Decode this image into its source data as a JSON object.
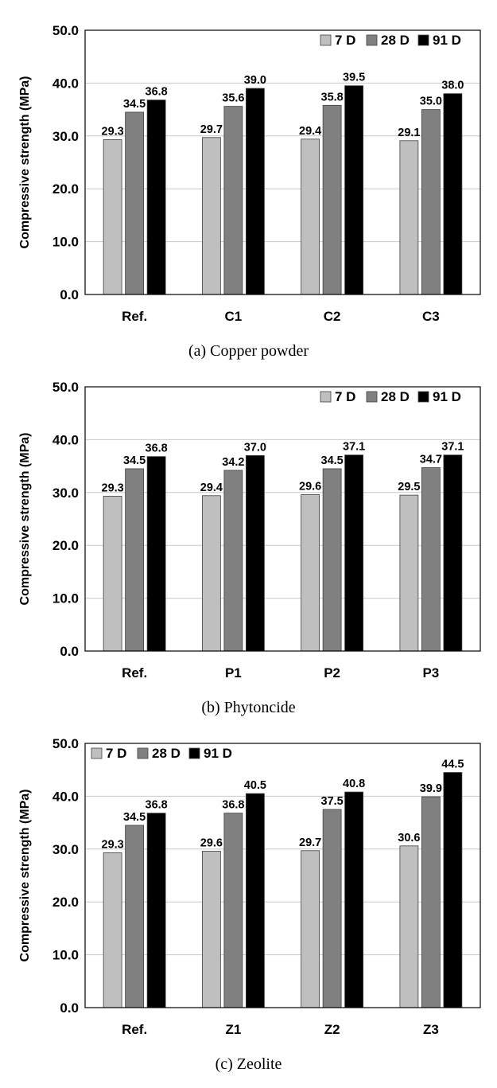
{
  "chart_data": [
    {
      "type": "bar",
      "caption": "(a) Copper powder",
      "ylabel": "Compressive strength (MPa)",
      "ylim": [
        0,
        50
      ],
      "yticks": [
        "0.0",
        "10.0",
        "20.0",
        "30.0",
        "40.0",
        "50.0"
      ],
      "grid": true,
      "legend_position": "top-right",
      "categories": [
        "Ref.",
        "C1",
        "C2",
        "C3"
      ],
      "series": [
        {
          "name": "7 D",
          "color": "#bfbfbf",
          "values": [
            29.3,
            29.7,
            29.4,
            29.1
          ],
          "labels": [
            "29.3",
            "29.7",
            "29.4",
            "29.1"
          ]
        },
        {
          "name": "28 D",
          "color": "#808080",
          "values": [
            34.5,
            35.6,
            35.8,
            35.0
          ],
          "labels": [
            "34.5",
            "35.6",
            "35.8",
            "35.0"
          ]
        },
        {
          "name": "91 D",
          "color": "#000000",
          "values": [
            36.8,
            39.0,
            39.5,
            38.0
          ],
          "labels": [
            "36.8",
            "39.0",
            "39.5",
            "38.0"
          ]
        }
      ]
    },
    {
      "type": "bar",
      "caption": "(b) Phytoncide",
      "ylabel": "Compressive strength (MPa)",
      "ylim": [
        0,
        50
      ],
      "yticks": [
        "0.0",
        "10.0",
        "20.0",
        "30.0",
        "40.0",
        "50.0"
      ],
      "grid": true,
      "legend_position": "top-right",
      "categories": [
        "Ref.",
        "P1",
        "P2",
        "P3"
      ],
      "series": [
        {
          "name": "7 D",
          "color": "#bfbfbf",
          "values": [
            29.3,
            29.4,
            29.6,
            29.5
          ],
          "labels": [
            "29.3",
            "29.4",
            "29.6",
            "29.5"
          ]
        },
        {
          "name": "28 D",
          "color": "#808080",
          "values": [
            34.5,
            34.2,
            34.5,
            34.7
          ],
          "labels": [
            "34.5",
            "34.2",
            "34.5",
            "34.7"
          ]
        },
        {
          "name": "91 D",
          "color": "#000000",
          "values": [
            36.8,
            37.0,
            37.1,
            37.1
          ],
          "labels": [
            "36.8",
            "37.0",
            "37.1",
            "37.1"
          ]
        }
      ]
    },
    {
      "type": "bar",
      "caption": "(c) Zeolite",
      "ylabel": "Compressive strength (MPa)",
      "ylim": [
        0,
        50
      ],
      "yticks": [
        "0.0",
        "10.0",
        "20.0",
        "30.0",
        "40.0",
        "50.0"
      ],
      "grid": true,
      "legend_position": "top-left",
      "categories": [
        "Ref.",
        "Z1",
        "Z2",
        "Z3"
      ],
      "series": [
        {
          "name": "7 D",
          "color": "#bfbfbf",
          "values": [
            29.3,
            29.6,
            29.7,
            30.6
          ],
          "labels": [
            "29.3",
            "29.6",
            "29.7",
            "30.6"
          ]
        },
        {
          "name": "28 D",
          "color": "#808080",
          "values": [
            34.5,
            36.8,
            37.5,
            39.9
          ],
          "labels": [
            "34.5",
            "36.8",
            "37.5",
            "39.9"
          ]
        },
        {
          "name": "91 D",
          "color": "#000000",
          "values": [
            36.8,
            40.5,
            40.8,
            44.5
          ],
          "labels": [
            "36.8",
            "40.5",
            "40.8",
            "44.5"
          ]
        }
      ]
    }
  ]
}
